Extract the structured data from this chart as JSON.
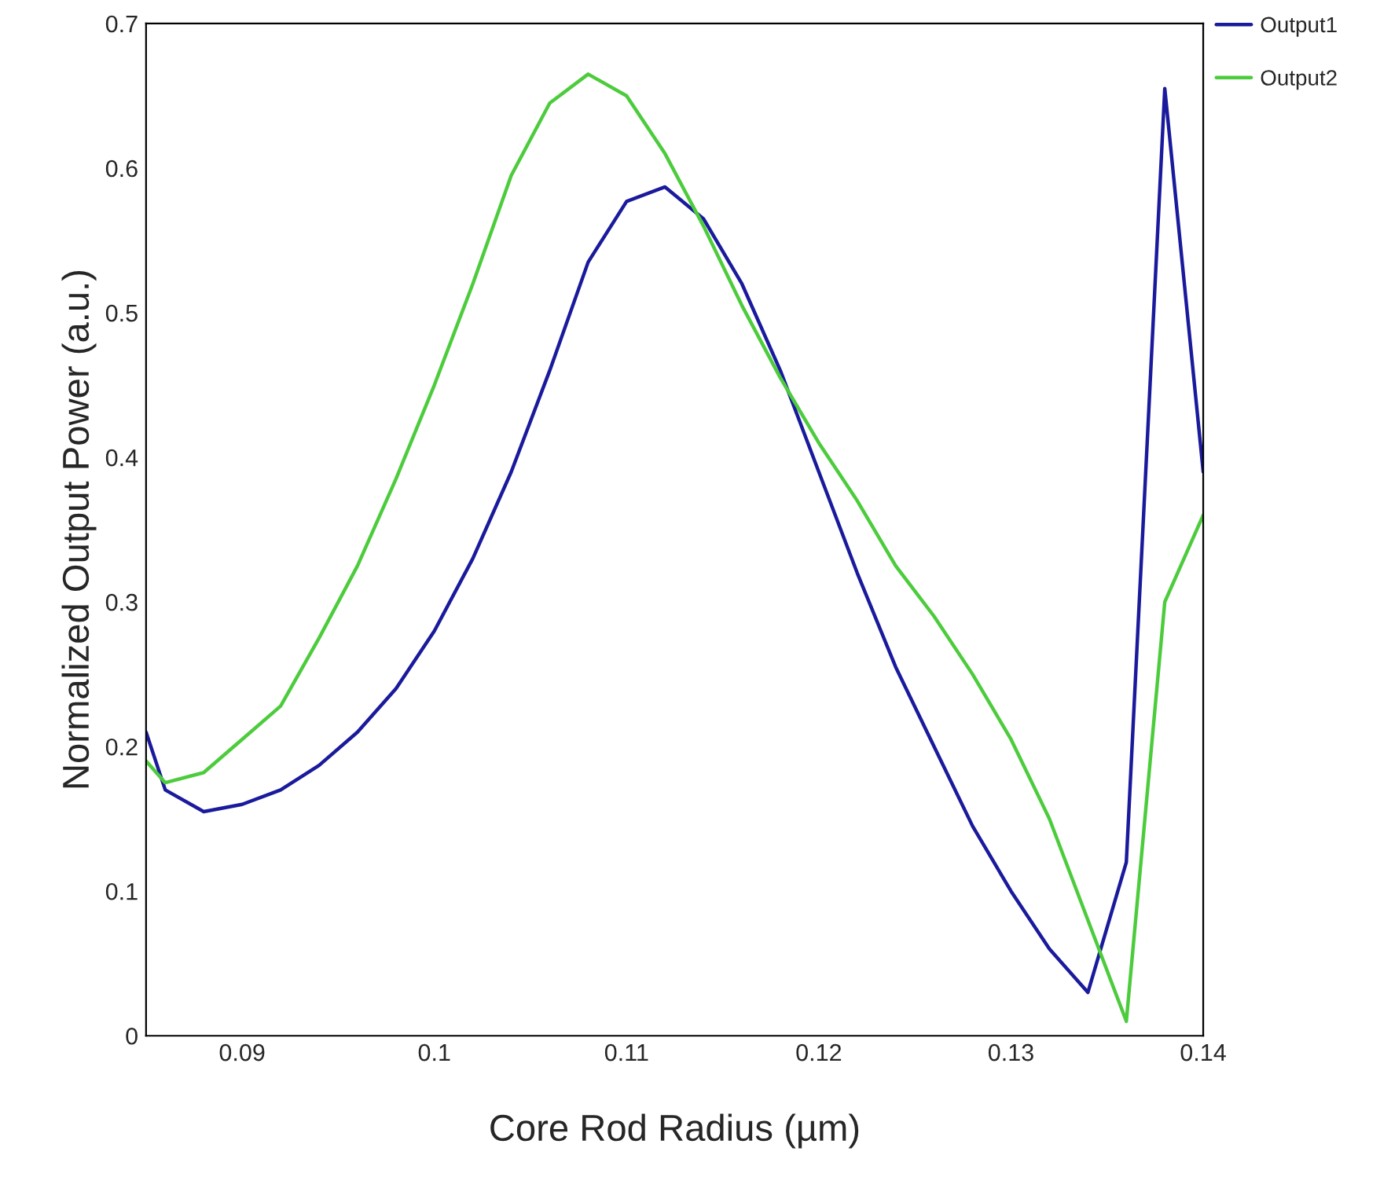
{
  "chart_data": {
    "type": "line",
    "xlabel": "Core Rod Radius (µm)",
    "ylabel": "Normalized Output Power (a.u.)",
    "x": [
      0.085,
      0.086,
      0.088,
      0.09,
      0.092,
      0.094,
      0.096,
      0.098,
      0.1,
      0.102,
      0.104,
      0.106,
      0.108,
      0.11,
      0.112,
      0.114,
      0.116,
      0.118,
      0.12,
      0.122,
      0.124,
      0.126,
      0.128,
      0.13,
      0.132,
      0.134,
      0.136,
      0.138,
      0.14
    ],
    "series": [
      {
        "name": "Output1",
        "color": "#1a1a9c",
        "values": [
          0.21,
          0.17,
          0.155,
          0.16,
          0.17,
          0.187,
          0.21,
          0.24,
          0.28,
          0.33,
          0.39,
          0.46,
          0.535,
          0.577,
          0.587,
          0.565,
          0.52,
          0.46,
          0.39,
          0.32,
          0.255,
          0.2,
          0.145,
          0.1,
          0.06,
          0.03,
          0.12,
          0.655,
          0.39
        ]
      },
      {
        "name": "Output2",
        "color": "#4ccc3c",
        "values": [
          0.19,
          0.175,
          0.182,
          0.205,
          0.228,
          0.275,
          0.325,
          0.385,
          0.45,
          0.52,
          0.595,
          0.645,
          0.665,
          0.65,
          0.61,
          0.56,
          0.505,
          0.455,
          0.41,
          0.37,
          0.325,
          0.29,
          0.25,
          0.205,
          0.15,
          0.08,
          0.01,
          0.3,
          0.36
        ]
      }
    ],
    "xlim": [
      0.085,
      0.14
    ],
    "xticks": [
      0.09,
      0.1,
      0.11,
      0.12,
      0.13,
      0.14
    ],
    "ylim": [
      0,
      0.7
    ],
    "yticks": [
      0,
      0.1,
      0.2,
      0.3,
      0.4,
      0.5,
      0.6,
      0.7
    ],
    "grid": false,
    "legend": "top right",
    "line_style": "solid",
    "marker": "none"
  }
}
